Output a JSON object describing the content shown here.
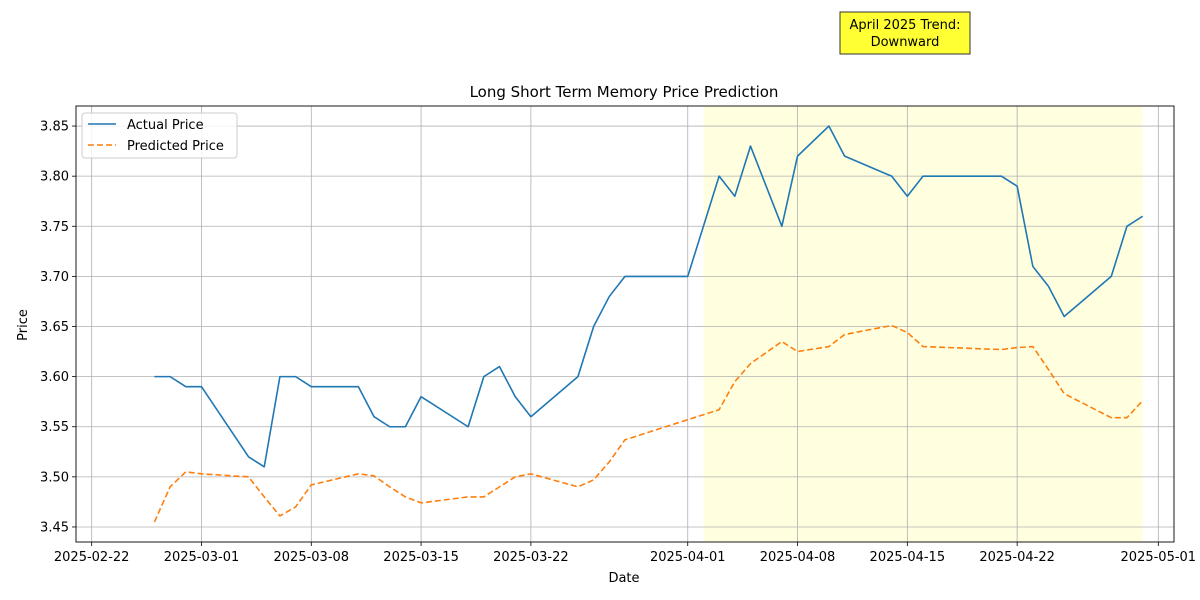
{
  "chart_data": {
    "type": "line",
    "title": "Long Short Term Memory Price Prediction",
    "xlabel": "Date",
    "ylabel": "Price",
    "xlim": [
      "2025-02-21",
      "2025-05-02"
    ],
    "ylim": [
      3.435,
      3.87
    ],
    "grid": true,
    "legend_position": "top-left",
    "x_ticks": [
      "2025-02-22",
      "2025-03-01",
      "2025-03-08",
      "2025-03-15",
      "2025-03-22",
      "2025-04-01",
      "2025-04-08",
      "2025-04-15",
      "2025-04-22",
      "2025-05-01"
    ],
    "y_ticks": [
      "3.45",
      "3.50",
      "3.55",
      "3.60",
      "3.65",
      "3.70",
      "3.75",
      "3.80",
      "3.85"
    ],
    "highlight": {
      "x_start": "2025-04-02",
      "x_end": "2025-04-30",
      "color": "#ffffe0"
    },
    "annotation": {
      "line1": "April 2025 Trend:",
      "line2": "Downward",
      "background": "#ffff33"
    },
    "series": [
      {
        "name": "Actual Price",
        "color": "#1f77b4",
        "style": "solid",
        "points": [
          [
            "2025-02-26",
            3.6
          ],
          [
            "2025-02-27",
            3.6
          ],
          [
            "2025-02-28",
            3.59
          ],
          [
            "2025-03-01",
            3.59
          ],
          [
            "2025-03-04",
            3.52
          ],
          [
            "2025-03-05",
            3.51
          ],
          [
            "2025-03-06",
            3.6
          ],
          [
            "2025-03-07",
            3.6
          ],
          [
            "2025-03-08",
            3.59
          ],
          [
            "2025-03-11",
            3.59
          ],
          [
            "2025-03-12",
            3.56
          ],
          [
            "2025-03-13",
            3.55
          ],
          [
            "2025-03-14",
            3.55
          ],
          [
            "2025-03-15",
            3.58
          ],
          [
            "2025-03-18",
            3.55
          ],
          [
            "2025-03-19",
            3.6
          ],
          [
            "2025-03-20",
            3.61
          ],
          [
            "2025-03-21",
            3.58
          ],
          [
            "2025-03-22",
            3.56
          ],
          [
            "2025-03-25",
            3.6
          ],
          [
            "2025-03-26",
            3.65
          ],
          [
            "2025-03-27",
            3.68
          ],
          [
            "2025-03-28",
            3.7
          ],
          [
            "2025-04-01",
            3.7
          ],
          [
            "2025-04-03",
            3.8
          ],
          [
            "2025-04-04",
            3.78
          ],
          [
            "2025-04-05",
            3.83
          ],
          [
            "2025-04-07",
            3.75
          ],
          [
            "2025-04-08",
            3.82
          ],
          [
            "2025-04-10",
            3.85
          ],
          [
            "2025-04-11",
            3.82
          ],
          [
            "2025-04-14",
            3.8
          ],
          [
            "2025-04-15",
            3.78
          ],
          [
            "2025-04-16",
            3.8
          ],
          [
            "2025-04-21",
            3.8
          ],
          [
            "2025-04-22",
            3.79
          ],
          [
            "2025-04-23",
            3.71
          ],
          [
            "2025-04-24",
            3.69
          ],
          [
            "2025-04-25",
            3.66
          ],
          [
            "2025-04-28",
            3.7
          ],
          [
            "2025-04-29",
            3.75
          ],
          [
            "2025-04-30",
            3.76
          ]
        ]
      },
      {
        "name": "Predicted Price",
        "color": "#ff7f0e",
        "style": "dashed",
        "points": [
          [
            "2025-02-26",
            3.455
          ],
          [
            "2025-02-27",
            3.49
          ],
          [
            "2025-02-28",
            3.505
          ],
          [
            "2025-03-01",
            3.503
          ],
          [
            "2025-03-04",
            3.5
          ],
          [
            "2025-03-05",
            3.48
          ],
          [
            "2025-03-06",
            3.461
          ],
          [
            "2025-03-07",
            3.47
          ],
          [
            "2025-03-08",
            3.492
          ],
          [
            "2025-03-11",
            3.503
          ],
          [
            "2025-03-12",
            3.501
          ],
          [
            "2025-03-13",
            3.49
          ],
          [
            "2025-03-14",
            3.48
          ],
          [
            "2025-03-15",
            3.474
          ],
          [
            "2025-03-18",
            3.48
          ],
          [
            "2025-03-19",
            3.48
          ],
          [
            "2025-03-20",
            3.49
          ],
          [
            "2025-03-21",
            3.5
          ],
          [
            "2025-03-22",
            3.503
          ],
          [
            "2025-03-25",
            3.49
          ],
          [
            "2025-03-26",
            3.497
          ],
          [
            "2025-03-27",
            3.515
          ],
          [
            "2025-03-28",
            3.537
          ],
          [
            "2025-04-01",
            3.557
          ],
          [
            "2025-04-03",
            3.567
          ],
          [
            "2025-04-04",
            3.595
          ],
          [
            "2025-04-05",
            3.613
          ],
          [
            "2025-04-07",
            3.635
          ],
          [
            "2025-04-08",
            3.625
          ],
          [
            "2025-04-10",
            3.63
          ],
          [
            "2025-04-11",
            3.642
          ],
          [
            "2025-04-14",
            3.651
          ],
          [
            "2025-04-15",
            3.644
          ],
          [
            "2025-04-16",
            3.63
          ],
          [
            "2025-04-21",
            3.627
          ],
          [
            "2025-04-22",
            3.629
          ],
          [
            "2025-04-23",
            3.63
          ],
          [
            "2025-04-24",
            3.607
          ],
          [
            "2025-04-25",
            3.583
          ],
          [
            "2025-04-28",
            3.559
          ],
          [
            "2025-04-29",
            3.559
          ],
          [
            "2025-04-30",
            3.576
          ]
        ]
      }
    ]
  }
}
